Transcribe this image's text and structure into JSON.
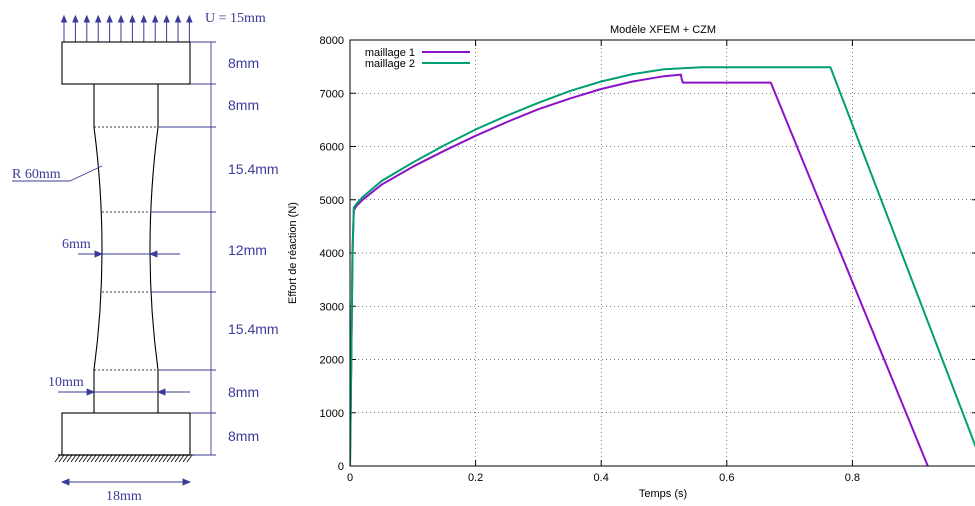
{
  "diagram": {
    "displacement_label": "U = 15mm",
    "radius_label": "R 60mm",
    "width_label": "18mm",
    "neck_label": "6mm",
    "shoulder_label": "10mm",
    "dims": [
      "8mm",
      "8mm",
      "15.4mm",
      "12mm",
      "15.4mm",
      "8mm",
      "8mm"
    ],
    "ink_color": "#3b3b9a"
  },
  "chart_data": {
    "type": "line",
    "title": "Modèle XFEM + CZM",
    "xlabel": "Temps (s)",
    "ylabel": "Effort de réaction (N)",
    "xlim": [
      0,
      1
    ],
    "ylim": [
      0,
      8000
    ],
    "x_ticks": [
      0,
      0.2,
      0.4,
      0.6,
      0.8
    ],
    "x_tick_labels": [
      "0",
      "0.2",
      "0.4",
      "0.6",
      "0.8"
    ],
    "y_ticks": [
      0,
      1000,
      2000,
      3000,
      4000,
      5000,
      6000,
      7000,
      8000
    ],
    "y_tick_labels": [
      "0",
      "1000",
      "2000",
      "3000",
      "4000",
      "5000",
      "6000",
      "7000",
      "8000"
    ],
    "grid": true,
    "legend_position": "top-left",
    "series": [
      {
        "name": "maillage 1",
        "color": "#8a13c8",
        "x": [
          0,
          0.002,
          0.004,
          0.006,
          0.01,
          0.02,
          0.05,
          0.1,
          0.15,
          0.2,
          0.25,
          0.3,
          0.35,
          0.4,
          0.45,
          0.5,
          0.527,
          0.528,
          0.53,
          0.67,
          0.92
        ],
        "y": [
          0,
          2000,
          4000,
          4800,
          4880,
          5000,
          5280,
          5620,
          5920,
          6200,
          6460,
          6700,
          6900,
          7080,
          7220,
          7320,
          7350,
          7270,
          7200,
          7200,
          0
        ]
      },
      {
        "name": "maillage 2",
        "color": "#009e73",
        "x": [
          0,
          0.002,
          0.004,
          0.006,
          0.01,
          0.02,
          0.05,
          0.1,
          0.15,
          0.2,
          0.25,
          0.3,
          0.35,
          0.4,
          0.45,
          0.5,
          0.56,
          0.765,
          1.0
        ],
        "y": [
          0,
          2000,
          4000,
          4850,
          4920,
          5050,
          5350,
          5700,
          6020,
          6320,
          6580,
          6820,
          7040,
          7220,
          7360,
          7450,
          7490,
          7490,
          250
        ]
      }
    ]
  }
}
